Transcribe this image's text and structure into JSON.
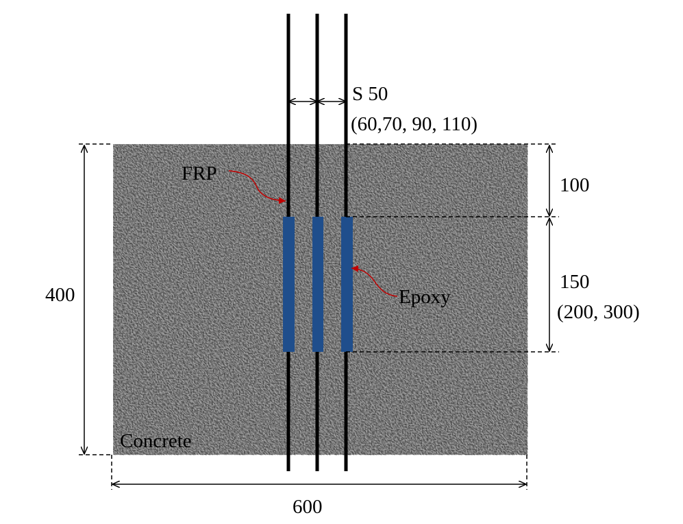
{
  "spacing": {
    "label": "S 50",
    "variants": "(60,70, 90, 110)"
  },
  "frp": {
    "label": "FRP"
  },
  "epoxy": {
    "label": "Epoxy"
  },
  "concrete": {
    "label": "Concrete"
  },
  "dimensions": {
    "top_free": "100",
    "bond_length": "150",
    "bond_length_variants": "(200, 300)",
    "height": "400",
    "width": "600"
  }
}
